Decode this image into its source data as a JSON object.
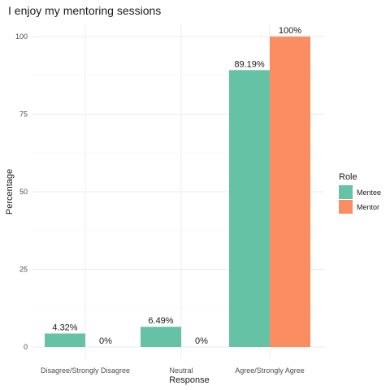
{
  "chart_data": {
    "type": "bar",
    "title": "I enjoy my mentoring sessions",
    "xlabel": "Response",
    "ylabel": "Percentage",
    "ylim": [
      0,
      100
    ],
    "yticks": [
      0,
      25,
      50,
      75,
      100
    ],
    "grid": true,
    "categories": [
      "Disagree/Strongly Disagree",
      "Neutral",
      "Agree/Strongly Agree"
    ],
    "series": [
      {
        "name": "Mentee",
        "color": "#66c2a5",
        "values": [
          4.32,
          6.49,
          89.19
        ],
        "labels": [
          "4.32%",
          "6.49%",
          "89.19%"
        ]
      },
      {
        "name": "Mentor",
        "color": "#fc8d62",
        "values": [
          0,
          0,
          100
        ],
        "labels": [
          "0%",
          "0%",
          "100%"
        ]
      }
    ],
    "legend": {
      "title": "Role",
      "position": "right"
    }
  }
}
